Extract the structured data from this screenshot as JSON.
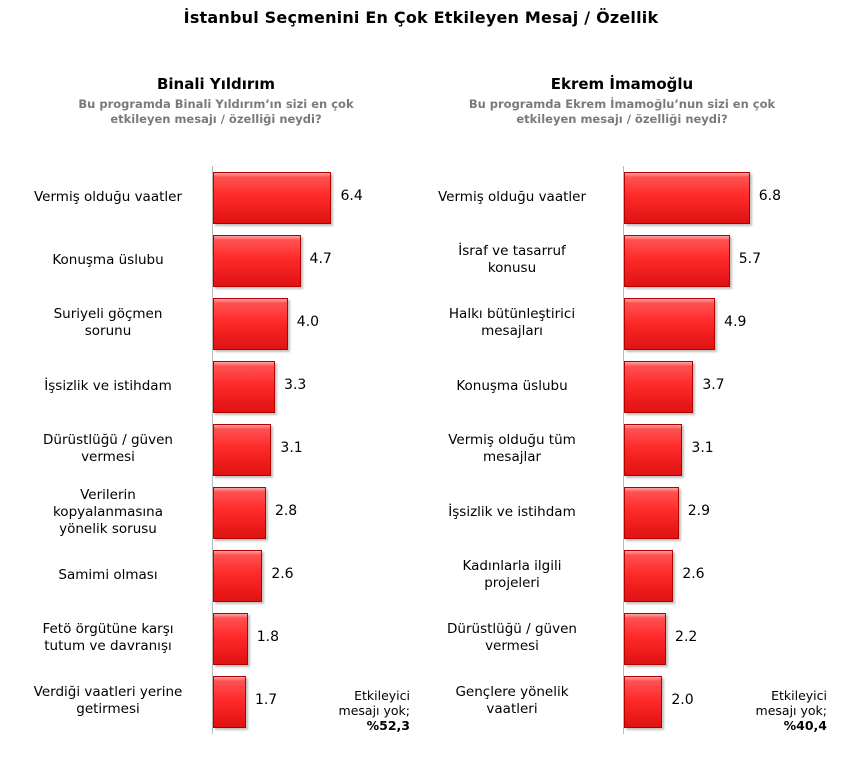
{
  "title": "İstanbul Seçmenini En Çok Etkileyen Mesaj / Özellik",
  "chart_data": [
    {
      "type": "bar",
      "orientation": "horizontal",
      "title": "Binali Yıldırım",
      "subtitle_line1": "Bu programda Binali Yıldırım’ın sizi en çok",
      "subtitle_line2": "etkileyen mesajı / özelliği neydi?",
      "categories": [
        [
          "Vermiş olduğu vaatler"
        ],
        [
          "Konuşma üslubu"
        ],
        [
          "Suriyeli göçmen",
          "sorunu"
        ],
        [
          "İşsizlik ve istihdam"
        ],
        [
          "Dürüstlüğü / güven",
          "vermesi"
        ],
        [
          "Verilerin",
          "kopyalanmasına",
          "yönelik sorusu"
        ],
        [
          "Samimi olması"
        ],
        [
          "Fetö örgütüne karşı",
          "tutum ve davranışı"
        ],
        [
          "Verdiği vaatleri yerine",
          "getirmesi"
        ]
      ],
      "values": [
        6.4,
        4.7,
        4.0,
        3.3,
        3.1,
        2.8,
        2.6,
        1.8,
        1.7
      ],
      "value_labels": [
        "6.4",
        "4.7",
        "4.0",
        "3.3",
        "3.1",
        "2.8",
        "2.6",
        "1.8",
        "1.7"
      ],
      "note_line1": "Etkileyici",
      "note_line2": "mesajı yok;",
      "note_value": "%52,3",
      "bar_color": "#ff2a2a"
    },
    {
      "type": "bar",
      "orientation": "horizontal",
      "title": "Ekrem İmamoğlu",
      "subtitle_line1": "Bu programda Ekrem İmamoğlu’nun sizi en çok",
      "subtitle_line2": "etkileyen mesajı / özelliği neydi?",
      "categories": [
        [
          "Vermiş olduğu vaatler"
        ],
        [
          "İsraf ve tasarruf",
          "konusu"
        ],
        [
          "Halkı bütünleştirici",
          "mesajları"
        ],
        [
          "Konuşma üslubu"
        ],
        [
          "Vermiş olduğu tüm",
          "mesajlar"
        ],
        [
          "İşsizlik ve istihdam"
        ],
        [
          "Kadınlarla ilgili",
          "projeleri"
        ],
        [
          "Dürüstlüğü / güven",
          "vermesi"
        ],
        [
          "Gençlere yönelik",
          "vaatleri"
        ]
      ],
      "values": [
        6.8,
        5.7,
        4.9,
        3.7,
        3.1,
        2.9,
        2.6,
        2.2,
        2.0
      ],
      "value_labels": [
        "6.8",
        "5.7",
        "4.9",
        "3.7",
        "3.1",
        "2.9",
        "2.6",
        "2.2",
        "2.0"
      ],
      "note_line1": "Etkileyici",
      "note_line2": "mesajı yok;",
      "note_value": "%40,4",
      "bar_color": "#ff2a2a"
    }
  ]
}
